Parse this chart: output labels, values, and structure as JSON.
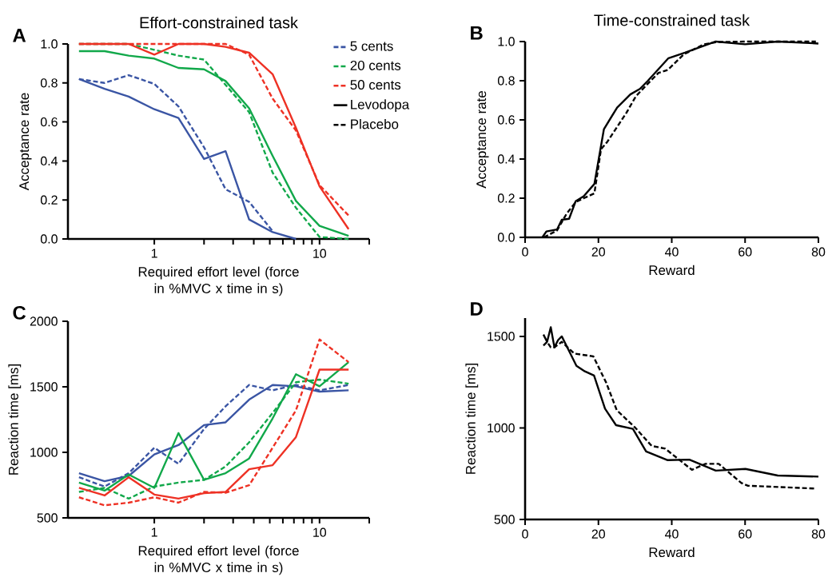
{
  "chart_data": [
    {
      "type": "line",
      "title": "Effort-constrained task",
      "xlabel": "Required effort level (force in %MVC x time in s)",
      "ylabel": "Acceptance rate",
      "annotations": [
        "A"
      ],
      "log": "x",
      "legend": "top right",
      "x": [
        0.35,
        0.5,
        0.7,
        1,
        1.4,
        2,
        2.7,
        3.75,
        5.2,
        7.2,
        10,
        15
      ],
      "xlim": [
        0.3,
        20
      ],
      "xticks": [
        1,
        {
          "value": 2,
          "label": null
        },
        {
          "value": 3,
          "label": null
        },
        {
          "value": 4,
          "label": null
        },
        {
          "value": 5,
          "label": null
        },
        {
          "value": 6,
          "label": null
        },
        {
          "value": 7,
          "label": null
        },
        {
          "value": 8,
          "label": null
        },
        {
          "value": 9,
          "label": null
        },
        10,
        {
          "value": 20,
          "label": null
        }
      ],
      "ylim": [
        0,
        1
      ],
      "yticks": [
        {
          "value": 0,
          "label": "0.0"
        },
        {
          "value": 0.2,
          "label": "0.2"
        },
        {
          "value": 0.4,
          "label": "0.4"
        },
        {
          "value": 0.6,
          "label": "0.6"
        },
        {
          "value": 0.8,
          "label": "0.8"
        },
        {
          "value": 1,
          "label": "1.0"
        }
      ],
      "series": [
        {
          "name": "5 cents",
          "color": "#3a55a4",
          "line_style": "dashed",
          "values": [
            null,
            null,
            null,
            null,
            null,
            null,
            null,
            null,
            null,
            null,
            null,
            null
          ]
        },
        {
          "name": "20 cents",
          "color": "#11a84a",
          "line_style": "dashed",
          "values": [
            null,
            null,
            null,
            null,
            null,
            null,
            null,
            null,
            null,
            null,
            null,
            null
          ]
        },
        {
          "name": "50 cents",
          "color": "#ee3124",
          "line_style": "dashed",
          "values": [
            null,
            null,
            null,
            null,
            null,
            null,
            null,
            null,
            null,
            null,
            null,
            null
          ]
        },
        {
          "name": "Levodopa",
          "color": "#000000",
          "line_style": "solid",
          "values": [
            null,
            null,
            null,
            null,
            null,
            null,
            null,
            null,
            null,
            null,
            null,
            null
          ]
        },
        {
          "name": "Placebo",
          "color": "#000000",
          "line_style": "dashed",
          "values": [
            null,
            null,
            null,
            null,
            null,
            null,
            null,
            null,
            null,
            null,
            null,
            null
          ]
        },
        {
          "color": "#3a55a4",
          "line_style": "solid",
          "values": [
            0.82,
            0.77,
            0.73,
            0.665,
            0.62,
            0.41,
            0.45,
            0.1,
            0.035,
            0.0,
            null,
            null
          ]
        },
        {
          "color": "#3a55a4",
          "line_style": "dashed",
          "values": [
            0.82,
            0.8,
            0.84,
            0.795,
            0.68,
            0.47,
            0.255,
            0.19,
            0.04,
            null,
            null,
            null
          ]
        },
        {
          "color": "#11a84a",
          "line_style": "solid",
          "values": [
            0.963,
            0.963,
            0.94,
            0.925,
            0.877,
            0.87,
            0.81,
            0.67,
            0.426,
            0.195,
            0.067,
            0.016
          ]
        },
        {
          "color": "#11a84a",
          "line_style": "dashed",
          "values": [
            1.0,
            1.0,
            1.0,
            0.97,
            0.94,
            0.92,
            0.79,
            0.65,
            0.34,
            0.16,
            0.01,
            0.0
          ]
        },
        {
          "color": "#ee3124",
          "line_style": "solid",
          "values": [
            1.0,
            1.0,
            1.0,
            0.945,
            1.0,
            1.0,
            0.985,
            0.955,
            0.845,
            0.57,
            0.27,
            0.05
          ]
        },
        {
          "color": "#ee3124",
          "line_style": "dashed",
          "values": [
            1.0,
            1.0,
            1.0,
            1.0,
            1.0,
            1.0,
            1.0,
            0.945,
            0.72,
            0.556,
            0.276,
            0.12
          ]
        }
      ]
    },
    {
      "type": "line",
      "title": "Time-constrained task",
      "xlabel": "Reward",
      "ylabel": "Acceptance rate",
      "annotations": [
        "B"
      ],
      "xlim": [
        0,
        80
      ],
      "xticks": [
        0,
        20,
        40,
        60,
        80
      ],
      "ylim": [
        0,
        1
      ],
      "yticks": [
        {
          "value": 0,
          "label": "0.0"
        },
        {
          "value": 0.2,
          "label": "0.2"
        },
        {
          "value": 0.4,
          "label": "0.4"
        },
        {
          "value": 0.6,
          "label": "0.6"
        },
        {
          "value": 0.8,
          "label": "0.8"
        },
        {
          "value": 1,
          "label": "1.0"
        }
      ],
      "series": [
        {
          "color": "#000000",
          "line_style": "solid",
          "x": [
            4.7,
            5.8,
            8.7,
            10,
            12,
            13.8,
            16,
            18.9,
            21.5,
            25.1,
            28.7,
            31.3,
            33.5,
            39.1,
            43.6,
            52,
            60,
            69,
            80
          ],
          "values": [
            0,
            0.03,
            0.04,
            0.09,
            0.095,
            0.185,
            0.21,
            0.273,
            0.553,
            0.663,
            0.73,
            0.758,
            0.8,
            0.915,
            0.943,
            1.0,
            0.986,
            1.0,
            0.99
          ]
        },
        {
          "color": "#000000",
          "line_style": "dashed",
          "x": [
            5.1,
            8.7,
            11.3,
            13.8,
            16,
            18.9,
            20.7,
            22.5,
            27.6,
            30.2,
            32.7,
            36.4,
            38.9,
            43.3,
            48.7,
            52,
            60,
            79.3
          ],
          "values": [
            0,
            0.035,
            0.12,
            0.18,
            0.2,
            0.225,
            0.45,
            0.49,
            0.635,
            0.72,
            0.77,
            0.84,
            0.855,
            0.935,
            0.985,
            0.997,
            1.0,
            1.0
          ]
        }
      ]
    },
    {
      "type": "line",
      "xlabel": "Required effort level (force in %MVC x time in s)",
      "ylabel": "Reaction time [ms]",
      "annotations": [
        "C"
      ],
      "log": "x",
      "x": [
        0.35,
        0.5,
        0.7,
        1,
        1.4,
        2,
        2.7,
        3.75,
        5.2,
        7.2,
        10,
        15
      ],
      "xlim": [
        0.3,
        20
      ],
      "xticks": [
        1,
        {
          "value": 2,
          "label": null
        },
        {
          "value": 3,
          "label": null
        },
        {
          "value": 4,
          "label": null
        },
        {
          "value": 5,
          "label": null
        },
        {
          "value": 6,
          "label": null
        },
        {
          "value": 7,
          "label": null
        },
        {
          "value": 8,
          "label": null
        },
        {
          "value": 9,
          "label": null
        },
        10,
        {
          "value": 20,
          "label": null
        }
      ],
      "ylim": [
        500,
        2000
      ],
      "yticks": [
        500,
        1000,
        1500,
        2000
      ],
      "series": [
        {
          "color": "#3a55a4",
          "line_style": "solid",
          "values": [
            841,
            780,
            820,
            984,
            1055,
            1208,
            1229,
            1402,
            1514,
            1504,
            1463,
            1473
          ]
        },
        {
          "color": "#3a55a4",
          "line_style": "dashed",
          "values": [
            810,
            739,
            841,
            1035,
            912,
            1178,
            1351,
            1514,
            1473,
            1514,
            1473,
            1514
          ]
        },
        {
          "color": "#11a84a",
          "line_style": "solid",
          "values": [
            769,
            708,
            831,
            729,
            1147,
            790,
            841,
            953,
            1259,
            1596,
            1504,
            1688
          ]
        },
        {
          "color": "#11a84a",
          "line_style": "dashed",
          "values": [
            698,
            729,
            647,
            739,
            769,
            790,
            892,
            1076,
            1300,
            1535,
            1555,
            1524
          ]
        },
        {
          "color": "#ee3124",
          "line_style": "solid",
          "values": [
            729,
            671,
            810,
            678,
            647,
            688,
            698,
            871,
            902,
            1116,
            1631,
            1631
          ]
        },
        {
          "color": "#ee3124",
          "line_style": "dashed",
          "values": [
            657,
            596,
            616,
            657,
            616,
            698,
            692,
            749,
            1035,
            1320,
            1861,
            1688
          ]
        }
      ]
    },
    {
      "type": "line",
      "xlabel": "Reward",
      "ylabel": "Reaction time [ms]",
      "annotations": [
        "D"
      ],
      "xlim": [
        0,
        80
      ],
      "xticks": [
        0,
        20,
        40,
        60,
        80
      ],
      "ylim": [
        500,
        1600
      ],
      "yticks": [
        500,
        1000,
        1500
      ],
      "series": [
        {
          "color": "#000000",
          "line_style": "solid",
          "x": [
            5,
            6,
            7,
            8,
            9,
            10,
            12,
            14,
            16.3,
            18.8,
            21.8,
            24.8,
            29.4,
            33,
            38.9,
            44.8,
            52,
            60.1,
            68.9,
            80
          ],
          "values": [
            1510,
            1470,
            1550,
            1440,
            1480,
            1500,
            1420,
            1339,
            1309,
            1286,
            1105,
            1015,
            995,
            872,
            824,
            827,
            767,
            776,
            740,
            734
          ]
        },
        {
          "color": "#000000",
          "line_style": "dashed",
          "x": [
            5,
            6,
            7,
            8,
            10,
            13.4,
            18.6,
            22.1,
            25,
            30.1,
            34.5,
            38.2,
            45.5,
            49.2,
            52.8,
            59,
            60.8,
            79.1
          ],
          "values": [
            1450,
            1470,
            1440,
            1440,
            1470,
            1406,
            1391,
            1248,
            1097,
            1000,
            902,
            887,
            771,
            804,
            804,
            699,
            684,
            669
          ]
        }
      ]
    }
  ]
}
